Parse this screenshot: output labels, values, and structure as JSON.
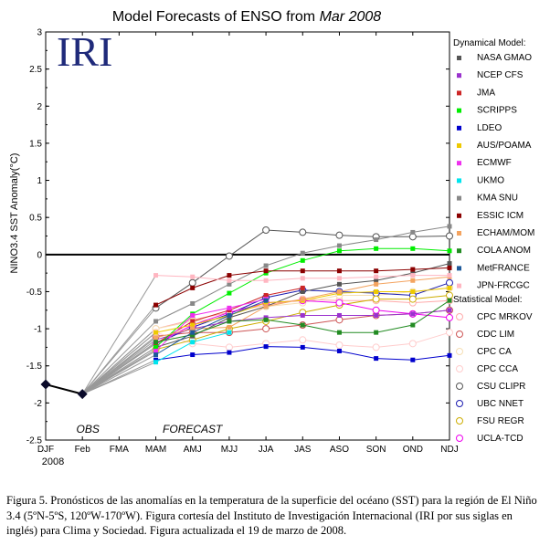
{
  "chart_data": {
    "type": "line",
    "title_prefix": "Model Forecasts of ENSO from",
    "title_date": "Mar 2008",
    "logo_text": "IRI",
    "ylabel": "NINO3.4 SST Anomaly(°C)",
    "ylim": [
      -2.5,
      3
    ],
    "yticks": [
      "-2.5",
      "-2",
      "-1.5",
      "-1",
      "-0.5",
      "0",
      "0.5",
      "1",
      "1.5",
      "2",
      "2.5",
      "3"
    ],
    "categories": [
      "DJF",
      "Feb",
      "FMA",
      "MAM",
      "AMJ",
      "MJJ",
      "JJA",
      "JAS",
      "ASO",
      "SON",
      "OND",
      "NDJ"
    ],
    "x_year_label": "2008",
    "obs_label": "OBS",
    "forecast_label": "FORECAST",
    "observed": [
      -1.75,
      -1.88
    ],
    "dynamical_title": "Dynamical Model:",
    "statistical_title": "Statistical Model:",
    "dynamical": [
      {
        "name": "NASA GMAO",
        "color": "#555555",
        "values": [
          null,
          null,
          null,
          -1.25,
          -1.1,
          -0.85,
          -0.7,
          -0.5,
          -0.4,
          -0.35,
          -0.25,
          -0.12
        ]
      },
      {
        "name": "NCEP CFS",
        "color": "#9a32cd",
        "values": [
          null,
          null,
          null,
          -1.15,
          -1.0,
          -0.9,
          -0.85,
          -0.82,
          -0.82,
          -0.82,
          -0.8,
          -0.75
        ]
      },
      {
        "name": "JMA",
        "color": "#cd2626",
        "values": [
          null,
          null,
          null,
          -1.2,
          -0.9,
          -0.75,
          -0.55,
          -0.45,
          null,
          null,
          null,
          null
        ]
      },
      {
        "name": "SCRIPPS",
        "color": "#00ee00",
        "values": [
          null,
          null,
          null,
          -1.25,
          -0.8,
          -0.52,
          -0.25,
          -0.08,
          0.05,
          0.08,
          0.08,
          0.05
        ]
      },
      {
        "name": "LDEO",
        "color": "#0000cd",
        "values": [
          null,
          null,
          null,
          -1.42,
          -1.35,
          -1.32,
          -1.24,
          -1.25,
          -1.3,
          -1.4,
          -1.42,
          -1.36
        ]
      },
      {
        "name": "AUS/POAMA",
        "color": "#eec900",
        "values": [
          null,
          null,
          null,
          -1.05,
          -0.95,
          -0.82,
          -0.65,
          -0.62,
          -0.52,
          -0.5,
          -0.5,
          -0.45
        ]
      },
      {
        "name": "ECMWF",
        "color": "#ee30ee",
        "values": [
          null,
          null,
          null,
          -1.3,
          -0.82,
          -0.72,
          -0.6,
          null,
          null,
          null,
          null,
          null
        ]
      },
      {
        "name": "UKMO",
        "color": "#00e5ee",
        "values": [
          null,
          null,
          null,
          -1.45,
          -1.18,
          -1.05,
          null,
          null,
          null,
          null,
          null,
          null
        ]
      },
      {
        "name": "KMA SNU",
        "color": "#888888",
        "values": [
          null,
          null,
          null,
          -0.9,
          -0.66,
          -0.4,
          -0.15,
          0.02,
          0.12,
          0.2,
          0.3,
          0.38
        ]
      },
      {
        "name": "ESSIC ICM",
        "color": "#8b0000",
        "values": [
          null,
          null,
          null,
          -0.68,
          -0.45,
          -0.28,
          -0.22,
          -0.22,
          -0.22,
          -0.22,
          -0.2,
          -0.18
        ]
      },
      {
        "name": "ECHAM/MOM",
        "color": "#f4a460",
        "values": [
          null,
          null,
          null,
          -1.12,
          -1.0,
          -0.98,
          -0.7,
          -0.6,
          -0.5,
          -0.4,
          -0.35,
          -0.3
        ]
      },
      {
        "name": "COLA ANOM",
        "color": "#228b22",
        "values": [
          null,
          null,
          null,
          -1.18,
          -1.08,
          -0.9,
          -0.88,
          -0.95,
          -1.05,
          -1.05,
          -0.95,
          -0.62
        ]
      },
      {
        "name": "MetFRANCE",
        "color": "#1e5a9a",
        "values": [
          null,
          null,
          null,
          -1.35,
          -1.05,
          -0.82,
          -0.62,
          null,
          null,
          null,
          null,
          null
        ]
      },
      {
        "name": "JPN-FRCGC",
        "color": "#ffb6c1",
        "values": [
          null,
          null,
          null,
          -0.28,
          -0.3,
          -0.35,
          -0.35,
          -0.32,
          -0.32,
          -0.3,
          -0.28,
          -0.28
        ]
      }
    ],
    "statistical": [
      {
        "name": "CPC MRKOV",
        "color": "#ffaaaa",
        "values": [
          null,
          null,
          null,
          -1.0,
          -0.88,
          -0.78,
          -0.68,
          -0.6,
          -0.62,
          -0.62,
          -0.65,
          -0.62
        ]
      },
      {
        "name": "CDC LIM",
        "color": "#cd5555",
        "values": [
          null,
          null,
          null,
          -1.1,
          -1.05,
          -1.05,
          -1.0,
          -0.95,
          -0.88,
          -0.82,
          -0.8,
          -0.75
        ]
      },
      {
        "name": "CPC CA",
        "color": "#f5deb3",
        "values": [
          null,
          null,
          null,
          -1.0,
          -0.9,
          -0.85,
          -0.7,
          -0.65,
          -0.55,
          -0.55,
          -0.5,
          -0.45
        ]
      },
      {
        "name": "CPC CCA",
        "color": "#ffcccc",
        "values": [
          null,
          null,
          null,
          -1.05,
          -1.2,
          -1.25,
          -1.2,
          -1.15,
          -1.22,
          -1.25,
          -1.2,
          -1.05
        ]
      },
      {
        "name": "CSU CLIPR",
        "color": "#555555",
        "values": [
          null,
          null,
          null,
          -0.72,
          -0.38,
          -0.02,
          0.33,
          0.3,
          0.26,
          0.24,
          0.24,
          0.25
        ]
      },
      {
        "name": "UBC NNET",
        "color": "#1c1cb0",
        "values": [
          null,
          null,
          null,
          -1.2,
          -0.98,
          -0.8,
          -0.58,
          -0.48,
          -0.5,
          -0.52,
          -0.55,
          -0.38
        ]
      },
      {
        "name": "FSU REGR",
        "color": "#cdad00",
        "values": [
          null,
          null,
          null,
          -1.28,
          -1.15,
          -1.0,
          -0.9,
          -0.78,
          -0.68,
          -0.6,
          -0.6,
          -0.55
        ]
      },
      {
        "name": "UCLA-TCD",
        "color": "#ee00ee",
        "values": [
          null,
          null,
          null,
          -1.2,
          -0.95,
          -0.78,
          -0.65,
          -0.62,
          -0.65,
          -0.75,
          -0.8,
          -0.85
        ]
      }
    ]
  },
  "caption": {
    "text": "Figura 5. Pronósticos de las anomalías en la temperatura de la superficie del océano (SST) para la región  de El Niño 3.4 (5ºN-5ºS, 120ºW-170ºW). Figura cortesía del Instituto de Investigación Internacional (IRI por sus siglas en inglés) para Clima y Sociedad. Figura actualizada el 19 de marzo de 2008."
  }
}
